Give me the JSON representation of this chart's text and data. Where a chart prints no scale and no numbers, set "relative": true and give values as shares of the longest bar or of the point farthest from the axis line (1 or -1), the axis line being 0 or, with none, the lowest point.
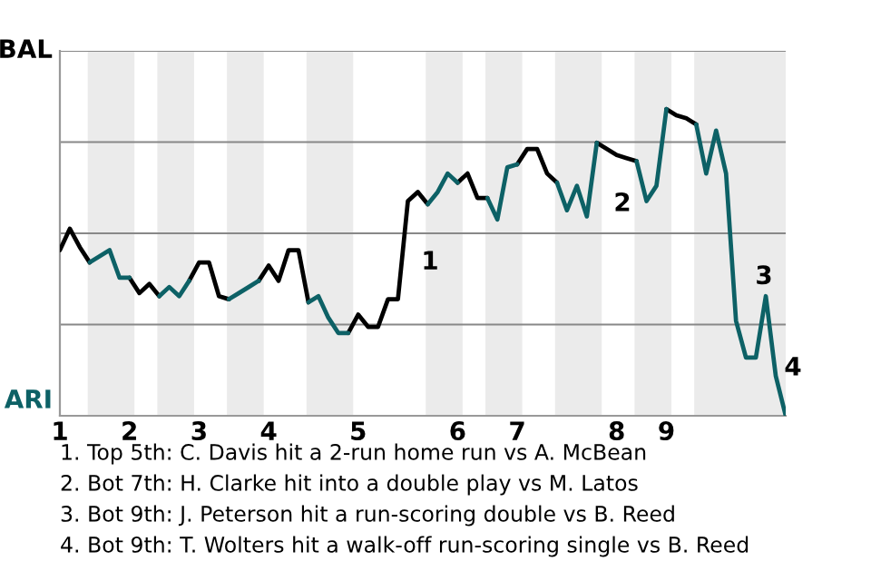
{
  "chart_data": {
    "type": "line",
    "relative": true,
    "categories": [
      "1",
      null,
      null,
      null,
      null,
      null,
      null,
      "2",
      null,
      null,
      null,
      null,
      null,
      null,
      "3",
      null,
      null,
      null,
      null,
      null,
      null,
      "4",
      null,
      null,
      null,
      null,
      null,
      null,
      null,
      null,
      "5",
      null,
      null,
      null,
      null,
      null,
      null,
      null,
      null,
      null,
      "6",
      null,
      null,
      null,
      null,
      null,
      "7",
      null,
      null,
      null,
      null,
      null,
      null,
      null,
      null,
      null,
      "8",
      null,
      null,
      null,
      null,
      "9",
      null,
      null,
      null,
      null,
      null,
      null,
      null,
      null,
      null,
      null,
      null,
      null
    ],
    "grid": "y",
    "line_style": "solid",
    "series": [
      {
        "color": "#000000",
        "values": [
          0.54,
          0.61,
          0.55,
          0.5,
          null,
          null,
          null,
          0.45,
          0.4,
          0.43,
          0.39,
          null,
          null,
          0.44,
          0.5,
          0.5,
          0.39,
          0.38,
          null,
          null,
          0.44,
          0.49,
          0.44,
          0.54,
          0.54,
          0.37,
          null,
          null,
          null,
          0.27,
          0.33,
          0.29,
          0.29,
          0.38,
          0.38,
          0.7,
          0.73,
          0.69,
          null,
          null,
          0.76,
          0.79,
          0.71,
          0.71,
          null,
          null,
          0.82,
          0.87,
          0.87,
          0.79,
          0.76,
          null,
          null,
          null,
          0.89,
          0.87,
          0.85,
          0.84,
          0.83,
          null,
          null,
          1,
          0.98,
          0.97,
          0.95,
          null,
          null,
          null,
          null,
          null,
          null,
          null,
          null,
          null
        ]
      },
      {
        "color": "#0d6166",
        "values": [
          null,
          null,
          null,
          0.5,
          0.52,
          0.54,
          0.45,
          0.45,
          null,
          null,
          0.39,
          0.42,
          0.39,
          0.44,
          null,
          null,
          null,
          0.38,
          0.4,
          0.42,
          0.44,
          null,
          null,
          null,
          null,
          0.37,
          0.39,
          0.32,
          0.27,
          0.27,
          null,
          null,
          null,
          null,
          null,
          null,
          null,
          0.69,
          0.73,
          0.79,
          0.76,
          null,
          null,
          0.71,
          0.64,
          0.81,
          0.82,
          null,
          null,
          null,
          0.76,
          0.67,
          0.75,
          0.65,
          0.89,
          null,
          null,
          null,
          0.83,
          0.7,
          0.75,
          1,
          null,
          null,
          0.95,
          0.79,
          0.93,
          0.79,
          0.31,
          0.19,
          0.19,
          0.39,
          0.13,
          0
        ]
      }
    ],
    "annotations": [
      "BAL",
      "ARI",
      "1",
      "2",
      "3",
      "4",
      "1. Top 5th: C. Davis hit a 2-run home run vs A. McBean",
      "2. Bot 7th: H. Clarke hit into a double play vs M. Latos",
      "3. Bot 9th: J. Peterson hit a run-scoring double vs B. Reed",
      "4. Bot 9th: T. Wolters hit a walk-off run-scoring single vs B. Reed"
    ]
  }
}
